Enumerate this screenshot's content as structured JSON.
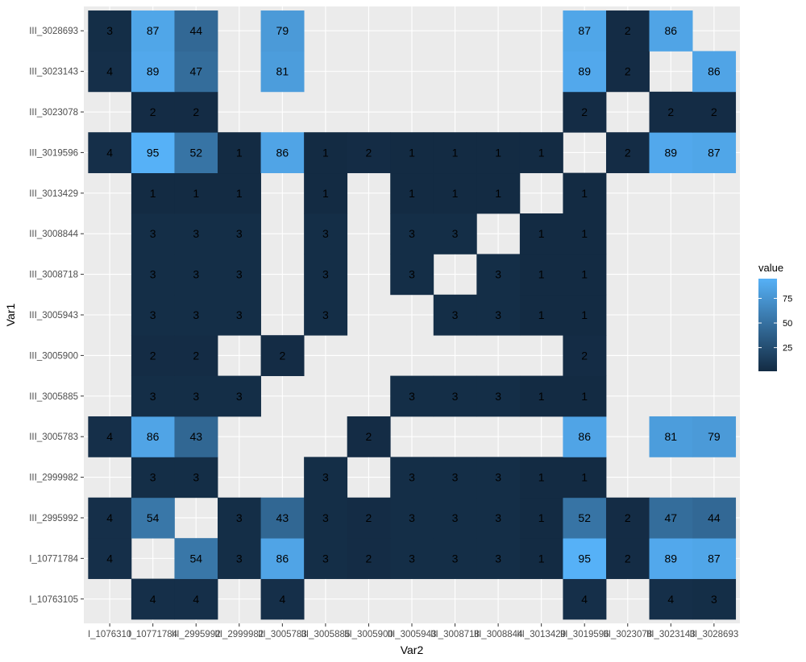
{
  "chart_data": {
    "type": "heatmap",
    "xlabel": "Var2",
    "ylabel": "Var1",
    "legend_title": "value",
    "legend_placement": "right",
    "grid": true,
    "colors": {
      "low": "#132b43",
      "high": "#56b1f7",
      "panel": "#ebebeb",
      "gridline": "#ffffff"
    },
    "value_range": [
      1,
      95
    ],
    "legend_ticks": [
      25,
      50,
      75
    ],
    "x_categories": [
      "I_10763105",
      "I_10771784",
      "III_2995992",
      "III_2999982",
      "III_3005783",
      "III_3005885",
      "III_3005900",
      "III_3005943",
      "III_3008718",
      "III_3008844",
      "III_3013429",
      "III_3019596",
      "III_3023078",
      "III_3023143",
      "III_3028693"
    ],
    "x_tick_labels": [
      "I_1076310",
      "I_10771784",
      "III_2995992",
      "III_2999982",
      "III_3005783",
      "III_3005885",
      "III_3005900",
      "III_3005943",
      "III_3008718",
      "III_3008844",
      "III_3013429",
      "III_3019596",
      "III_3023078",
      "III_3023143",
      "III_3028693"
    ],
    "y_categories": [
      "I_10763105",
      "I_10771784",
      "III_2995992",
      "III_2999982",
      "III_3005783",
      "III_3005885",
      "III_3005900",
      "III_3005943",
      "III_3008718",
      "III_3008844",
      "III_3013429",
      "III_3019596",
      "III_3023078",
      "III_3023143",
      "III_3028693"
    ],
    "rows": [
      [
        null,
        4,
        4,
        null,
        4,
        null,
        null,
        null,
        null,
        null,
        null,
        4,
        null,
        4,
        3
      ],
      [
        4,
        null,
        54,
        3,
        86,
        3,
        2,
        3,
        3,
        3,
        1,
        95,
        2,
        89,
        87
      ],
      [
        4,
        54,
        null,
        3,
        43,
        3,
        2,
        3,
        3,
        3,
        1,
        52,
        2,
        47,
        44
      ],
      [
        null,
        3,
        3,
        null,
        null,
        3,
        null,
        3,
        3,
        3,
        1,
        1,
        null,
        null,
        null
      ],
      [
        4,
        86,
        43,
        null,
        null,
        null,
        2,
        null,
        null,
        null,
        null,
        86,
        null,
        81,
        79
      ],
      [
        null,
        3,
        3,
        3,
        null,
        null,
        null,
        3,
        3,
        3,
        1,
        1,
        null,
        null,
        null
      ],
      [
        null,
        2,
        2,
        null,
        2,
        null,
        null,
        null,
        null,
        null,
        null,
        2,
        null,
        null,
        null
      ],
      [
        null,
        3,
        3,
        3,
        null,
        3,
        null,
        null,
        3,
        3,
        1,
        1,
        null,
        null,
        null
      ],
      [
        null,
        3,
        3,
        3,
        null,
        3,
        null,
        3,
        null,
        3,
        1,
        1,
        null,
        null,
        null
      ],
      [
        null,
        3,
        3,
        3,
        null,
        3,
        null,
        3,
        3,
        null,
        1,
        1,
        null,
        null,
        null
      ],
      [
        null,
        1,
        1,
        1,
        null,
        1,
        null,
        1,
        1,
        1,
        null,
        1,
        null,
        null,
        null
      ],
      [
        4,
        95,
        52,
        1,
        86,
        1,
        2,
        1,
        1,
        1,
        1,
        null,
        2,
        89,
        87
      ],
      [
        null,
        2,
        2,
        null,
        null,
        null,
        null,
        null,
        null,
        null,
        null,
        2,
        null,
        2,
        2
      ],
      [
        4,
        89,
        47,
        null,
        81,
        null,
        null,
        null,
        null,
        null,
        null,
        89,
        2,
        null,
        86
      ],
      [
        3,
        87,
        44,
        null,
        79,
        null,
        null,
        null,
        null,
        null,
        null,
        87,
        2,
        86,
        null
      ]
    ]
  }
}
